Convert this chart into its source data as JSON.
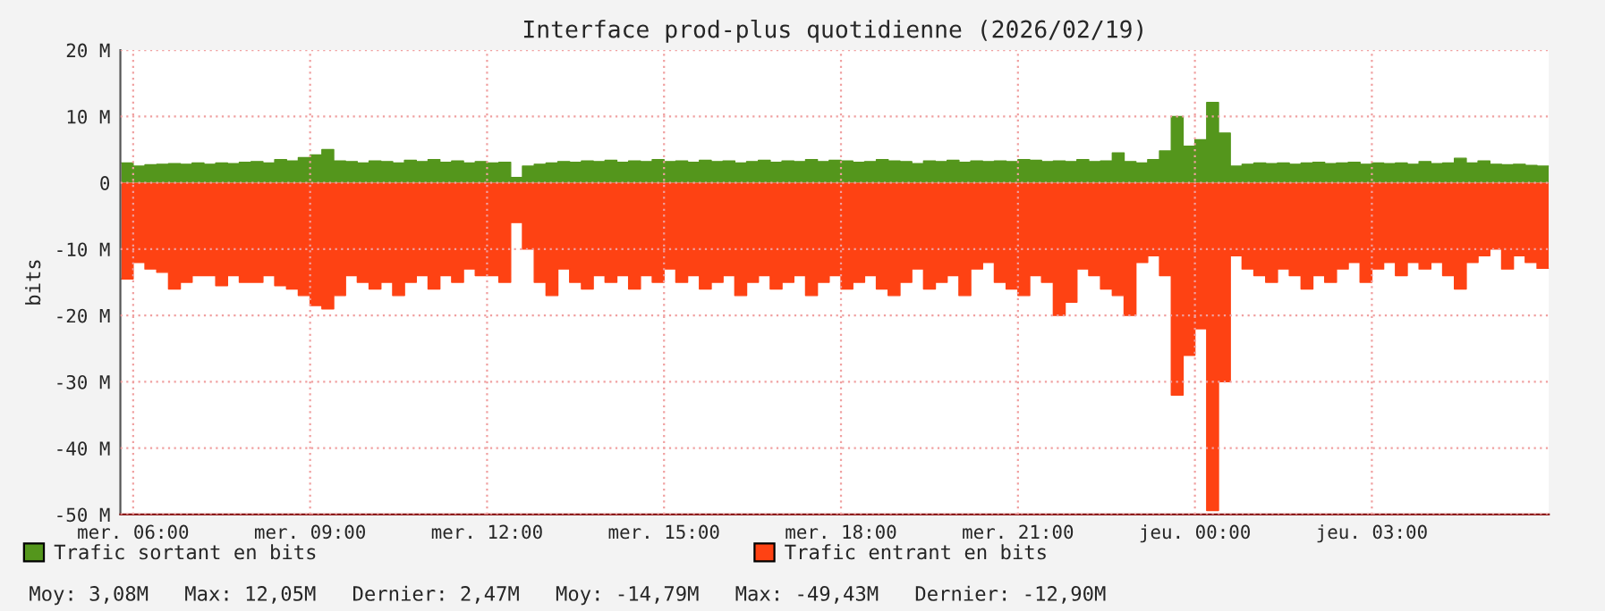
{
  "chart_data": {
    "type": "area",
    "title": "Interface prod-plus quotidienne (2026/02/19)",
    "ylabel": "bits",
    "x": [
      "2026-02-18T05:48",
      "2026-02-18T06:00",
      "2026-02-18T06:00",
      "2026-02-18T06:12",
      "2026-02-18T06:12",
      "2026-02-18T06:24",
      "2026-02-18T06:24",
      "2026-02-18T06:36",
      "2026-02-18T06:36",
      "2026-02-18T06:48",
      "2026-02-18T06:48",
      "2026-02-18T07:00",
      "2026-02-18T07:00",
      "2026-02-18T07:12",
      "2026-02-18T07:12",
      "2026-02-18T07:24",
      "2026-02-18T07:24",
      "2026-02-18T07:36",
      "2026-02-18T07:36",
      "2026-02-18T07:48",
      "2026-02-18T07:48",
      "2026-02-18T08:00",
      "2026-02-18T08:00",
      "2026-02-18T08:12",
      "2026-02-18T08:12",
      "2026-02-18T08:24",
      "2026-02-18T08:24",
      "2026-02-18T08:36",
      "2026-02-18T08:36",
      "2026-02-18T08:48",
      "2026-02-18T08:48",
      "2026-02-18T09:00",
      "2026-02-18T09:00",
      "2026-02-18T09:12",
      "2026-02-18T09:12",
      "2026-02-18T09:24",
      "2026-02-18T09:24",
      "2026-02-18T09:36",
      "2026-02-18T09:36",
      "2026-02-18T09:48",
      "2026-02-18T09:48",
      "2026-02-18T10:00",
      "2026-02-18T10:00",
      "2026-02-18T10:12",
      "2026-02-18T10:12",
      "2026-02-18T10:24",
      "2026-02-18T10:24",
      "2026-02-18T10:36",
      "2026-02-18T10:36",
      "2026-02-18T10:48",
      "2026-02-18T10:48",
      "2026-02-18T11:00",
      "2026-02-18T11:00",
      "2026-02-18T11:12",
      "2026-02-18T11:12",
      "2026-02-18T11:24",
      "2026-02-18T11:24",
      "2026-02-18T11:36",
      "2026-02-18T11:36",
      "2026-02-18T11:48",
      "2026-02-18T11:48",
      "2026-02-18T12:00",
      "2026-02-18T12:00",
      "2026-02-18T12:12",
      "2026-02-18T12:12",
      "2026-02-18T12:24",
      "2026-02-18T12:24",
      "2026-02-18T12:36",
      "2026-02-18T12:36",
      "2026-02-18T12:48",
      "2026-02-18T12:48",
      "2026-02-18T13:00",
      "2026-02-18T13:00",
      "2026-02-18T13:12",
      "2026-02-18T13:12",
      "2026-02-18T13:24",
      "2026-02-18T13:24",
      "2026-02-18T13:36",
      "2026-02-18T13:36",
      "2026-02-18T13:48",
      "2026-02-18T13:48",
      "2026-02-18T14:00",
      "2026-02-18T14:00",
      "2026-02-18T14:12",
      "2026-02-18T14:12",
      "2026-02-18T14:24",
      "2026-02-18T14:24",
      "2026-02-18T14:36",
      "2026-02-18T14:36",
      "2026-02-18T14:48",
      "2026-02-18T14:48",
      "2026-02-18T15:00",
      "2026-02-18T15:00",
      "2026-02-18T15:12",
      "2026-02-18T15:12",
      "2026-02-18T15:24",
      "2026-02-18T15:24",
      "2026-02-18T15:36",
      "2026-02-18T15:36",
      "2026-02-18T15:48",
      "2026-02-18T15:48",
      "2026-02-18T16:00",
      "2026-02-18T16:00",
      "2026-02-18T16:12",
      "2026-02-18T16:12",
      "2026-02-18T16:24",
      "2026-02-18T16:24",
      "2026-02-18T16:36",
      "2026-02-18T16:36",
      "2026-02-18T16:48",
      "2026-02-18T16:48",
      "2026-02-18T17:00",
      "2026-02-18T17:00",
      "2026-02-18T17:12",
      "2026-02-18T17:12",
      "2026-02-18T17:24",
      "2026-02-18T17:24",
      "2026-02-18T17:36",
      "2026-02-18T17:36",
      "2026-02-18T17:48",
      "2026-02-18T17:48",
      "2026-02-18T18:00",
      "2026-02-18T18:00",
      "2026-02-18T18:12",
      "2026-02-18T18:12",
      "2026-02-18T18:24",
      "2026-02-18T18:24",
      "2026-02-18T18:36",
      "2026-02-18T18:36",
      "2026-02-18T18:48",
      "2026-02-18T18:48",
      "2026-02-18T19:00",
      "2026-02-18T19:00",
      "2026-02-18T19:12",
      "2026-02-18T19:12",
      "2026-02-18T19:24",
      "2026-02-18T19:24",
      "2026-02-18T19:36",
      "2026-02-18T19:36",
      "2026-02-18T19:48",
      "2026-02-18T19:48",
      "2026-02-18T20:00",
      "2026-02-18T20:00",
      "2026-02-18T20:12",
      "2026-02-18T20:12",
      "2026-02-18T20:24",
      "2026-02-18T20:24",
      "2026-02-18T20:36",
      "2026-02-18T20:36",
      "2026-02-18T20:48",
      "2026-02-18T20:48",
      "2026-02-18T21:00",
      "2026-02-18T21:00",
      "2026-02-18T21:12",
      "2026-02-18T21:12",
      "2026-02-18T21:24",
      "2026-02-18T21:24",
      "2026-02-18T21:36",
      "2026-02-18T21:36",
      "2026-02-18T21:48",
      "2026-02-18T21:48",
      "2026-02-18T22:00",
      "2026-02-18T22:00",
      "2026-02-18T22:12",
      "2026-02-18T22:12",
      "2026-02-18T22:24",
      "2026-02-18T22:24",
      "2026-02-18T22:36",
      "2026-02-18T22:36",
      "2026-02-18T22:48",
      "2026-02-18T22:48",
      "2026-02-18T23:00",
      "2026-02-18T23:00",
      "2026-02-18T23:12",
      "2026-02-18T23:12",
      "2026-02-18T23:24",
      "2026-02-18T23:24",
      "2026-02-18T23:36",
      "2026-02-18T23:36",
      "2026-02-18T23:48",
      "2026-02-18T23:48",
      "2026-02-19T00:00",
      "2026-02-19T00:00",
      "2026-02-19T00:12",
      "2026-02-19T00:12",
      "2026-02-19T00:24",
      "2026-02-19T00:24",
      "2026-02-19T00:36",
      "2026-02-19T00:36",
      "2026-02-19T00:48",
      "2026-02-19T00:48",
      "2026-02-19T01:00",
      "2026-02-19T01:00",
      "2026-02-19T01:12",
      "2026-02-19T01:12",
      "2026-02-19T01:24",
      "2026-02-19T01:24",
      "2026-02-19T01:36",
      "2026-02-19T01:36",
      "2026-02-19T01:48",
      "2026-02-19T01:48",
      "2026-02-19T02:00",
      "2026-02-19T02:00",
      "2026-02-19T02:12",
      "2026-02-19T02:12",
      "2026-02-19T02:24",
      "2026-02-19T02:24",
      "2026-02-19T02:36",
      "2026-02-19T02:36",
      "2026-02-19T02:48",
      "2026-02-19T02:48",
      "2026-02-19T03:00",
      "2026-02-19T03:00",
      "2026-02-19T03:12",
      "2026-02-19T03:12",
      "2026-02-19T03:24",
      "2026-02-19T03:24",
      "2026-02-19T03:36",
      "2026-02-19T03:36",
      "2026-02-19T03:48",
      "2026-02-19T03:48",
      "2026-02-19T04:00",
      "2026-02-19T04:00",
      "2026-02-19T04:12",
      "2026-02-19T04:12",
      "2026-02-19T04:24",
      "2026-02-19T04:24",
      "2026-02-19T04:36",
      "2026-02-19T04:36",
      "2026-02-19T04:48",
      "2026-02-19T04:48",
      "2026-02-19T05:00",
      "2026-02-19T05:00",
      "2026-02-19T05:12",
      "2026-02-19T05:12",
      "2026-02-19T05:24",
      "2026-02-19T05:24",
      "2026-02-19T05:36",
      "2026-02-19T05:36",
      "2026-02-19T05:48",
      "2026-02-19T05:48",
      "2026-02-19T06:00"
    ],
    "series": [
      {
        "name": "Trafic sortant en bits",
        "color": "#54961c",
        "values": [
          3.0,
          3.0,
          2.5,
          2.5,
          2.7,
          2.7,
          2.8,
          2.8,
          2.9,
          2.9,
          2.8,
          2.8,
          3.0,
          3.0,
          2.8,
          2.8,
          3.0,
          3.0,
          2.9,
          2.9,
          3.1,
          3.1,
          3.2,
          3.2,
          3.0,
          3.0,
          3.5,
          3.5,
          3.3,
          3.3,
          3.8,
          3.8,
          4.2,
          4.2,
          5.0,
          5.0,
          3.3,
          3.3,
          3.2,
          3.2,
          3.0,
          3.0,
          3.3,
          3.3,
          3.2,
          3.2,
          3.0,
          3.0,
          3.4,
          3.4,
          3.2,
          3.2,
          3.5,
          3.5,
          3.1,
          3.1,
          3.3,
          3.3,
          3.0,
          3.0,
          3.2,
          3.2,
          3.0,
          3.0,
          3.1,
          3.1,
          0.8,
          0.8,
          2.5,
          2.5,
          2.8,
          2.8,
          3.0,
          3.0,
          3.2,
          3.2,
          3.1,
          3.1,
          3.3,
          3.3,
          3.2,
          3.2,
          3.4,
          3.4,
          3.1,
          3.1,
          3.3,
          3.3,
          3.2,
          3.2,
          3.5,
          3.5,
          3.2,
          3.2,
          3.3,
          3.3,
          3.1,
          3.1,
          3.4,
          3.4,
          3.2,
          3.2,
          3.3,
          3.3,
          3.0,
          3.0,
          3.2,
          3.2,
          3.4,
          3.4,
          3.1,
          3.1,
          3.3,
          3.3,
          3.2,
          3.2,
          3.5,
          3.5,
          3.2,
          3.2,
          3.4,
          3.4,
          3.3,
          3.3,
          3.1,
          3.1,
          3.2,
          3.2,
          3.5,
          3.5,
          3.3,
          3.3,
          3.2,
          3.2,
          2.9,
          2.9,
          3.3,
          3.3,
          3.2,
          3.2,
          3.4,
          3.4,
          3.1,
          3.1,
          3.3,
          3.3,
          3.2,
          3.2,
          3.3,
          3.3,
          3.2,
          3.2,
          3.5,
          3.5,
          3.4,
          3.4,
          3.2,
          3.2,
          3.3,
          3.3,
          3.2,
          3.2,
          3.5,
          3.5,
          3.2,
          3.2,
          3.3,
          3.3,
          4.5,
          4.5,
          3.2,
          3.2,
          3.0,
          3.0,
          3.5,
          3.5,
          4.8,
          4.8,
          10.0,
          10.0,
          5.5,
          5.5,
          6.5,
          6.5,
          12.1,
          12.1,
          7.5,
          7.5,
          2.5,
          2.5,
          2.8,
          2.8,
          3.0,
          3.0,
          2.9,
          2.9,
          3.0,
          3.0,
          2.8,
          2.8,
          3.0,
          3.0,
          3.1,
          3.1,
          2.9,
          2.9,
          3.0,
          3.0,
          3.1,
          3.1,
          2.8,
          2.8,
          3.0,
          3.0,
          2.9,
          2.9,
          3.0,
          3.0,
          2.8,
          2.8,
          3.2,
          3.2,
          2.9,
          2.9,
          3.0,
          3.0,
          3.7,
          3.7,
          3.0,
          3.0,
          3.3,
          3.3,
          2.8,
          2.8,
          2.7,
          2.7,
          2.8,
          2.8,
          2.6,
          2.6,
          2.5,
          2.5
        ]
      },
      {
        "name": "Trafic entrant en bits",
        "color": "#fe4213",
        "values": [
          -14.5,
          -14.5,
          -12,
          -12,
          -13,
          -13,
          -13.5,
          -13.5,
          -16,
          -16,
          -15,
          -15,
          -14,
          -14,
          -14,
          -14,
          -15.5,
          -15.5,
          -14,
          -14,
          -15,
          -15,
          -15,
          -15,
          -14,
          -14,
          -15.5,
          -15.5,
          -16,
          -16,
          -17,
          -17,
          -18.5,
          -18.5,
          -19,
          -19,
          -17,
          -17,
          -14,
          -14,
          -15,
          -15,
          -16,
          -16,
          -15,
          -15,
          -17,
          -17,
          -15,
          -15,
          -14,
          -14,
          -16,
          -16,
          -14,
          -14,
          -15,
          -15,
          -13,
          -13,
          -14,
          -14,
          -14,
          -14,
          -15,
          -15,
          -6,
          -6,
          -10,
          -10,
          -15,
          -15,
          -17,
          -17,
          -13,
          -13,
          -15,
          -15,
          -16,
          -16,
          -14,
          -14,
          -15,
          -15,
          -14,
          -14,
          -16,
          -16,
          -14,
          -14,
          -15,
          -15,
          -13,
          -13,
          -15,
          -15,
          -14,
          -14,
          -16,
          -16,
          -15,
          -15,
          -14,
          -14,
          -17,
          -17,
          -15,
          -15,
          -14,
          -14,
          -16,
          -16,
          -15,
          -15,
          -14,
          -14,
          -17,
          -17,
          -15,
          -15,
          -14,
          -14,
          -16,
          -16,
          -15,
          -15,
          -14,
          -14,
          -16,
          -16,
          -17,
          -17,
          -15,
          -15,
          -13,
          -13,
          -16,
          -16,
          -15,
          -15,
          -14,
          -14,
          -17,
          -17,
          -13,
          -13,
          -12,
          -12,
          -15,
          -15,
          -16,
          -16,
          -17,
          -17,
          -14,
          -14,
          -15,
          -15,
          -20,
          -20,
          -18,
          -18,
          -13,
          -13,
          -14,
          -14,
          -16,
          -16,
          -17,
          -17,
          -20,
          -20,
          -12,
          -12,
          -11,
          -11,
          -14,
          -14,
          -32,
          -32,
          -26,
          -26,
          -22,
          -22,
          -49.4,
          -49.4,
          -30,
          -30,
          -11,
          -11,
          -13,
          -13,
          -14,
          -14,
          -15,
          -15,
          -13,
          -13,
          -14,
          -14,
          -16,
          -16,
          -14,
          -14,
          -15,
          -15,
          -13,
          -13,
          -12,
          -12,
          -15,
          -15,
          -13,
          -13,
          -12,
          -12,
          -14,
          -14,
          -12,
          -12,
          -13,
          -13,
          -12,
          -12,
          -14,
          -14,
          -16,
          -16,
          -12,
          -12,
          -11,
          -11,
          -10,
          -10,
          -13,
          -13,
          -11,
          -11,
          -12,
          -12,
          -12.9,
          -12.9
        ]
      }
    ],
    "xlim": [
      "2026-02-18T05:47",
      "2026-02-19T06:00"
    ],
    "xticks": [
      {
        "value": "2026-02-18T06:00",
        "label": "mer. 06:00"
      },
      {
        "value": "2026-02-18T09:00",
        "label": "mer. 09:00"
      },
      {
        "value": "2026-02-18T12:00",
        "label": "mer. 12:00"
      },
      {
        "value": "2026-02-18T15:00",
        "label": "mer. 15:00"
      },
      {
        "value": "2026-02-18T18:00",
        "label": "mer. 18:00"
      },
      {
        "value": "2026-02-18T21:00",
        "label": "mer. 21:00"
      },
      {
        "value": "2026-02-19T00:00",
        "label": "jeu. 00:00"
      },
      {
        "value": "2026-02-19T03:00",
        "label": "jeu. 03:00"
      }
    ],
    "ylim": [
      -50,
      20
    ],
    "yticks": [
      {
        "value": 20,
        "label": "20 M"
      },
      {
        "value": 10,
        "label": "10 M"
      },
      0,
      {
        "value": -10,
        "label": "-10 M"
      },
      {
        "value": -20,
        "label": "-20 M"
      },
      {
        "value": -30,
        "label": "-30 M"
      },
      {
        "value": -40,
        "label": "-40 M"
      },
      {
        "value": -50,
        "label": "-50 M"
      }
    ],
    "grid": true,
    "legend": "bottom",
    "annotations": [
      "Moy: 3,08M",
      "Max: 12,05M",
      "Dernier: 2,47M",
      "Moy: -14,79M",
      "Max: -49,43M",
      "Dernier: -12,90M"
    ]
  }
}
